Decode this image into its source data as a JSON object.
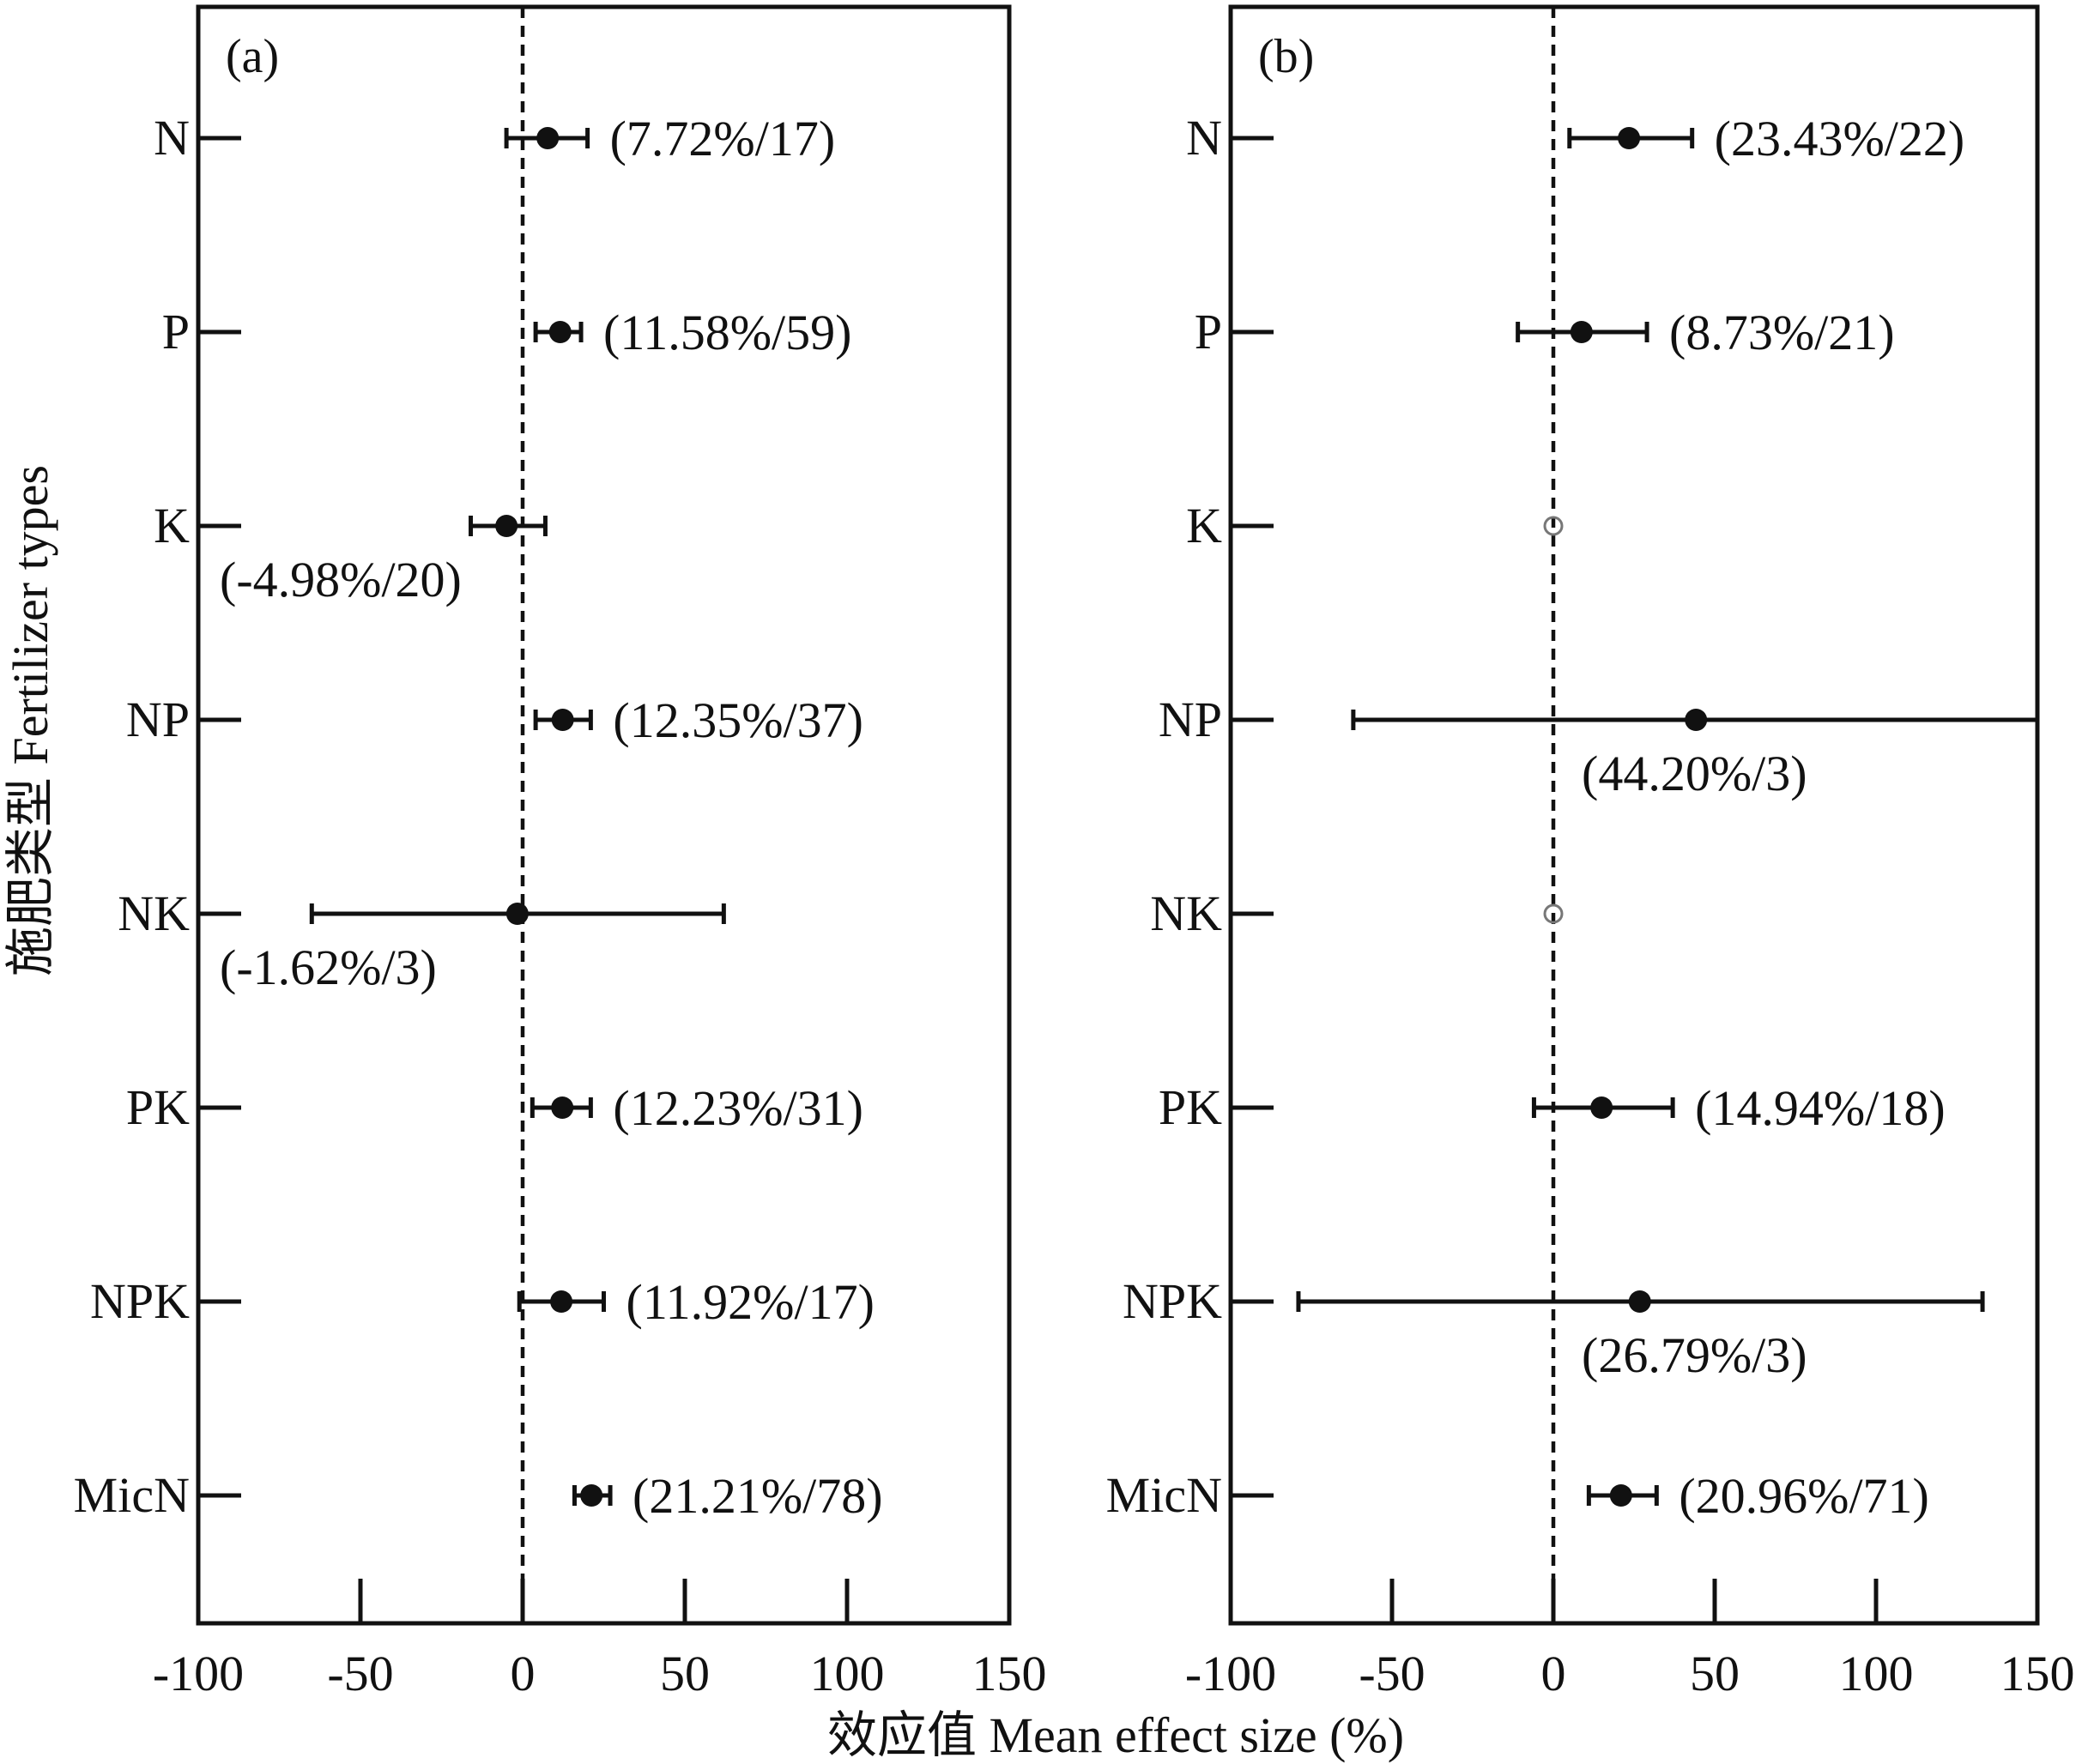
{
  "figure": {
    "ylabel": "施肥类型 Fertilizer types",
    "xlabel": "效应值 Mean effect size (%)"
  },
  "colors": {
    "ink": "#111111",
    "missing": "#777777",
    "background": "#ffffff"
  },
  "chart_data": [
    {
      "type": "scatter",
      "panel_label": "(a)",
      "categories": [
        "N",
        "P",
        "K",
        "NP",
        "NK",
        "PK",
        "NPK",
        "MicN"
      ],
      "x_ticks": [
        -100,
        -50,
        0,
        50,
        100,
        150
      ],
      "xlim": [
        -100,
        150
      ],
      "reference_line": 0,
      "grid": false,
      "points": [
        {
          "category": "N",
          "mean": 7.72,
          "ci_low": -5,
          "ci_high": 20,
          "n": 17,
          "label": "(7.72%/17)",
          "label_pos": "right"
        },
        {
          "category": "P",
          "mean": 11.58,
          "ci_low": 4,
          "ci_high": 18,
          "n": 59,
          "label": "(11.58%/59)",
          "label_pos": "right"
        },
        {
          "category": "K",
          "mean": -4.98,
          "ci_low": -16,
          "ci_high": 7,
          "n": 20,
          "label": "(-4.98%/20)",
          "label_pos": "below-left"
        },
        {
          "category": "NP",
          "mean": 12.35,
          "ci_low": 4,
          "ci_high": 21,
          "n": 37,
          "label": "(12.35%/37)",
          "label_pos": "right"
        },
        {
          "category": "NK",
          "mean": -1.62,
          "ci_low": -65,
          "ci_high": 62,
          "n": 3,
          "label": "(-1.62%/3)",
          "label_pos": "below-left"
        },
        {
          "category": "PK",
          "mean": 12.23,
          "ci_low": 3,
          "ci_high": 21,
          "n": 31,
          "label": "(12.23%/31)",
          "label_pos": "right"
        },
        {
          "category": "NPK",
          "mean": 11.92,
          "ci_low": -1,
          "ci_high": 25,
          "n": 17,
          "label": "(11.92%/17)",
          "label_pos": "right"
        },
        {
          "category": "MicN",
          "mean": 21.21,
          "ci_low": 16,
          "ci_high": 27,
          "n": 78,
          "label": "(21.21%/78)",
          "label_pos": "right"
        }
      ]
    },
    {
      "type": "scatter",
      "panel_label": "(b)",
      "categories": [
        "N",
        "P",
        "K",
        "NP",
        "NK",
        "PK",
        "NPK",
        "MicN"
      ],
      "x_ticks": [
        -100,
        -50,
        0,
        50,
        100,
        150
      ],
      "xlim": [
        -100,
        150
      ],
      "reference_line": 0,
      "grid": false,
      "points": [
        {
          "category": "N",
          "mean": 23.43,
          "ci_low": 5,
          "ci_high": 43,
          "n": 22,
          "label": "(23.43%/22)",
          "label_pos": "right"
        },
        {
          "category": "P",
          "mean": 8.73,
          "ci_low": -11,
          "ci_high": 29,
          "n": 21,
          "label": "(8.73%/21)",
          "label_pos": "right"
        },
        {
          "category": "K",
          "mean": 0,
          "missing": true
        },
        {
          "category": "NP",
          "mean": 44.2,
          "ci_low": -62,
          "ci_high": 150,
          "n": 3,
          "label": "(44.20%/3)",
          "label_pos": "below"
        },
        {
          "category": "NK",
          "mean": 0,
          "missing": true
        },
        {
          "category": "PK",
          "mean": 14.94,
          "ci_low": -6,
          "ci_high": 37,
          "n": 18,
          "label": "(14.94%/18)",
          "label_pos": "right"
        },
        {
          "category": "NPK",
          "mean": 26.79,
          "ci_low": -79,
          "ci_high": 133,
          "n": 3,
          "label": "(26.79%/3)",
          "label_pos": "below"
        },
        {
          "category": "MicN",
          "mean": 20.96,
          "ci_low": 11,
          "ci_high": 32,
          "n": 71,
          "label": "(20.96%/71)",
          "label_pos": "right"
        }
      ]
    }
  ]
}
